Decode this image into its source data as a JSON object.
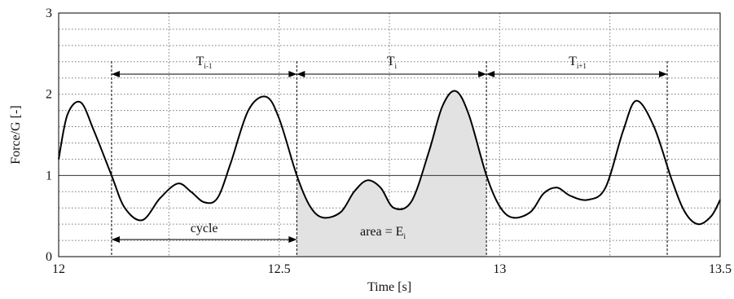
{
  "chart_data": {
    "type": "line",
    "xlabel": "Time [s]",
    "ylabel": "Force/G [-]",
    "xlim": [
      12,
      13.5
    ],
    "ylim": [
      0,
      3
    ],
    "x_ticks": [
      "12",
      "12.5",
      "13",
      "13.5"
    ],
    "y_ticks": [
      "0",
      "1",
      "2",
      "3"
    ],
    "grid": true,
    "reference_line_y": 1,
    "series": [
      {
        "x": [
          12.0,
          12.02,
          12.05,
          12.08,
          12.12,
          12.15,
          12.19,
          12.23,
          12.27,
          12.3,
          12.33,
          12.36,
          12.39,
          12.43,
          12.47,
          12.5,
          12.54,
          12.57,
          12.6,
          12.64,
          12.67,
          12.7,
          12.73,
          12.76,
          12.8,
          12.84,
          12.87,
          12.9,
          12.93,
          12.97,
          13.0,
          13.03,
          13.07,
          13.1,
          13.13,
          13.16,
          13.2,
          13.24,
          13.28,
          13.31,
          13.35,
          13.39,
          13.42,
          13.45,
          13.48,
          13.5
        ],
        "y": [
          1.2,
          1.75,
          1.9,
          1.55,
          1.0,
          0.6,
          0.45,
          0.72,
          0.9,
          0.8,
          0.67,
          0.72,
          1.15,
          1.8,
          1.97,
          1.7,
          1.0,
          0.62,
          0.48,
          0.55,
          0.8,
          0.94,
          0.85,
          0.6,
          0.68,
          1.3,
          1.85,
          2.04,
          1.75,
          1.0,
          0.62,
          0.48,
          0.55,
          0.78,
          0.85,
          0.75,
          0.7,
          0.85,
          1.55,
          1.92,
          1.6,
          0.95,
          0.55,
          0.4,
          0.5,
          0.7
        ]
      }
    ],
    "annotations": {
      "T_prev": "T",
      "T_prev_sub": "i-1",
      "T_i": "T",
      "T_i_sub": "i",
      "T_next": "T",
      "T_next_sub": "i+1",
      "cycle": "cycle",
      "area": "area = E",
      "area_sub": "i"
    },
    "period_boundaries_x": [
      12.12,
      12.54,
      12.97,
      13.38
    ],
    "shaded_region": [
      12.54,
      12.97
    ]
  }
}
